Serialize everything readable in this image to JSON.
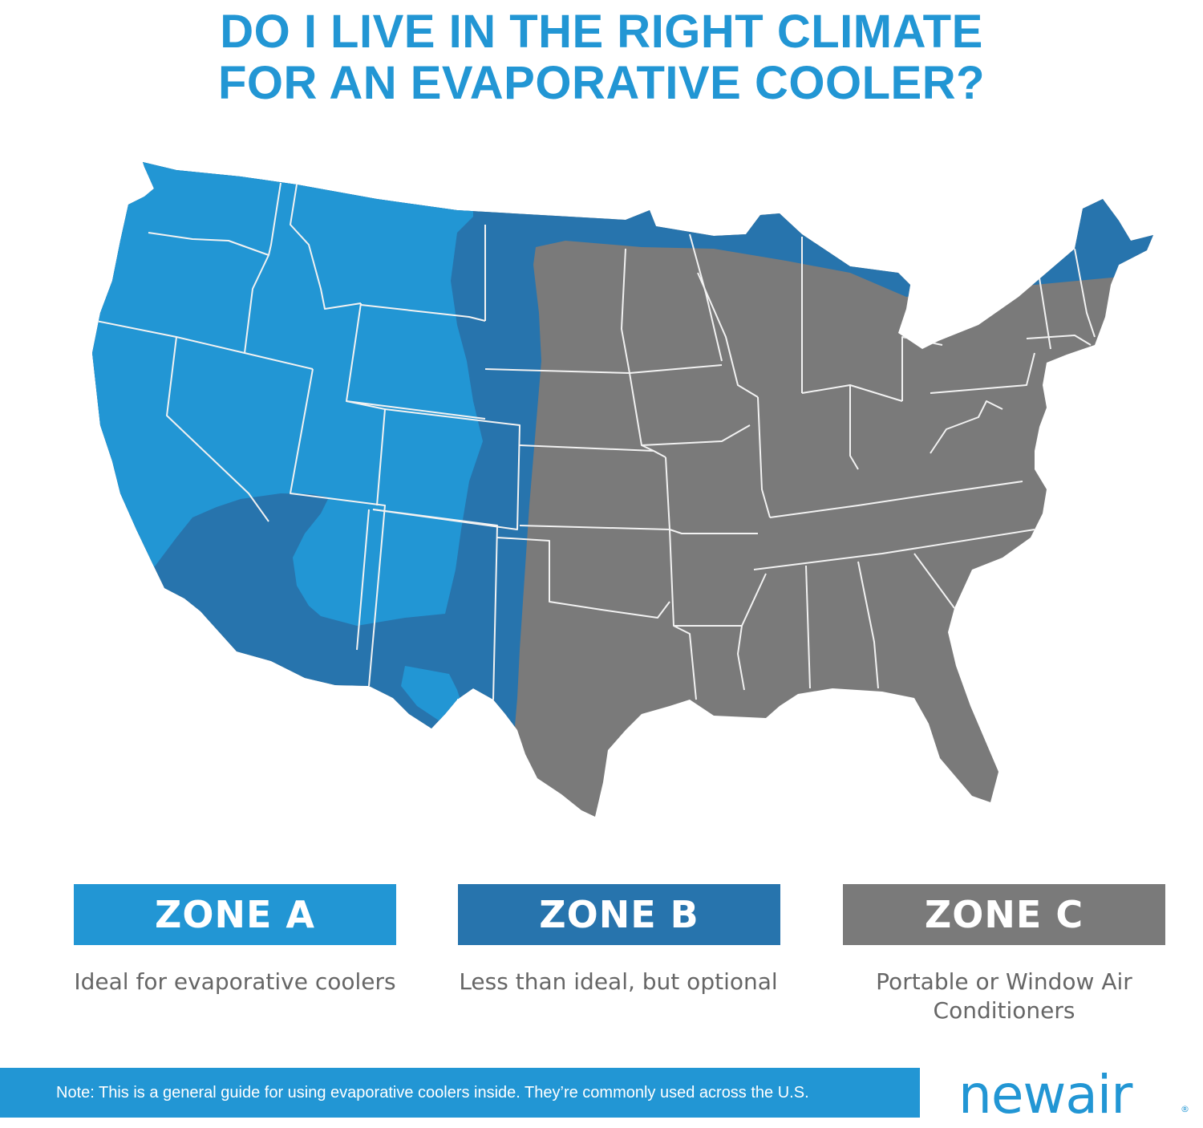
{
  "title_line1": "DO I LIVE IN THE RIGHT CLIMATE",
  "title_line2": "FOR AN EVAPORATIVE COOLER?",
  "zones": [
    {
      "label": "ZONE A",
      "description": "Ideal for evaporative coolers",
      "color": "#2296d4"
    },
    {
      "label": "ZONE B",
      "description": "Less than ideal, but optional",
      "color": "#2774ad"
    },
    {
      "label": "ZONE C",
      "description": "Portable or Window Air Conditioners",
      "color": "#7a7a7a"
    }
  ],
  "note": "Note: This is a general guide for using evaporative coolers inside. They’re commonly used across the U.S.",
  "logo_text": "newair",
  "logo_mark": "®"
}
